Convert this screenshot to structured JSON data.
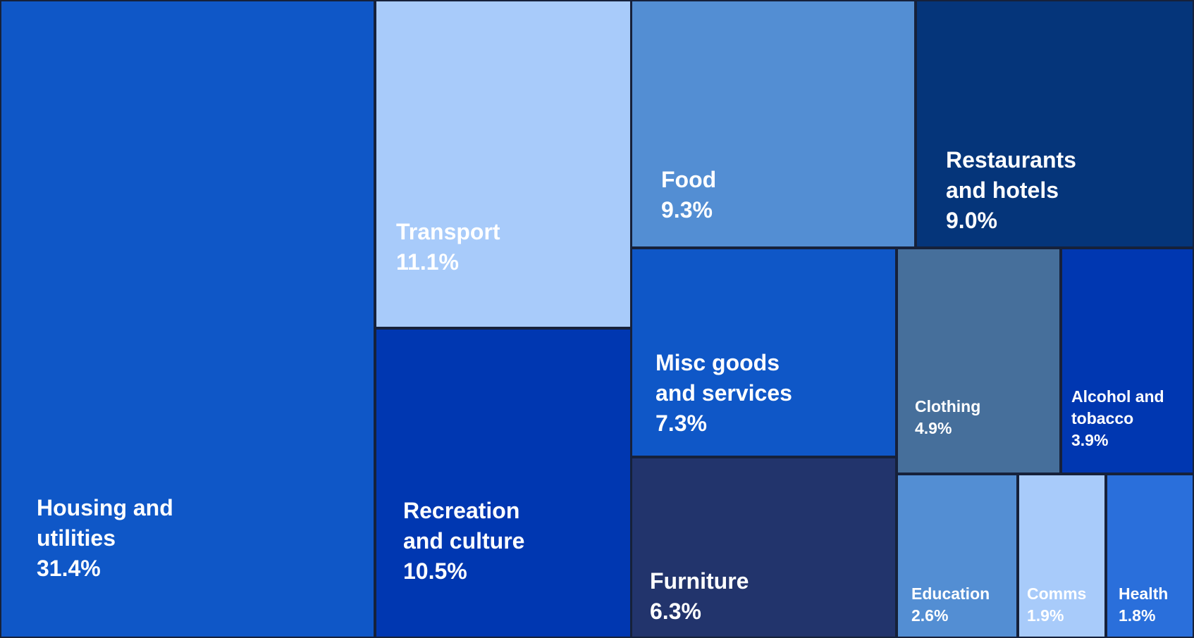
{
  "chart_data": {
    "type": "treemap",
    "unit": "%",
    "items": [
      {
        "name": "Housing and utilities",
        "lines": [
          "Housing and",
          "utilities"
        ],
        "value": 31.4,
        "label": "31.4%",
        "color": "#0f57c7"
      },
      {
        "name": "Transport",
        "lines": [
          "Transport"
        ],
        "value": 11.1,
        "label": "11.1%",
        "color": "#a8cbfa"
      },
      {
        "name": "Recreation and culture",
        "lines": [
          "Recreation",
          "and culture"
        ],
        "value": 10.5,
        "label": "10.5%",
        "color": "#0037b1"
      },
      {
        "name": "Food",
        "lines": [
          "Food"
        ],
        "value": 9.3,
        "label": "9.3%",
        "color": "#538ed3"
      },
      {
        "name": "Restaurants and hotels",
        "lines": [
          "Restaurants",
          "and hotels"
        ],
        "value": 9.0,
        "label": "9.0%",
        "color": "#05357a"
      },
      {
        "name": "Misc goods and services",
        "lines": [
          "Misc goods",
          "and services"
        ],
        "value": 7.3,
        "label": "7.3%",
        "color": "#0f57c7"
      },
      {
        "name": "Furniture",
        "lines": [
          "Furniture"
        ],
        "value": 6.3,
        "label": "6.3%",
        "color": "#22346c"
      },
      {
        "name": "Clothing",
        "lines": [
          "Clothing"
        ],
        "value": 4.9,
        "label": "4.9%",
        "color": "#466f9b"
      },
      {
        "name": "Alcohol and tobacco",
        "lines": [
          "Alcohol and",
          "tobacco"
        ],
        "value": 3.9,
        "label": "3.9%",
        "color": "#0037b1"
      },
      {
        "name": "Education",
        "lines": [
          "Education"
        ],
        "value": 2.6,
        "label": "2.6%",
        "color": "#538ed3"
      },
      {
        "name": "Comms",
        "lines": [
          "Comms"
        ],
        "value": 1.9,
        "label": "1.9%",
        "color": "#a8cbfa"
      },
      {
        "name": "Health",
        "lines": [
          "Health"
        ],
        "value": 1.8,
        "label": "1.8%",
        "color": "#2a6fdb"
      }
    ]
  }
}
